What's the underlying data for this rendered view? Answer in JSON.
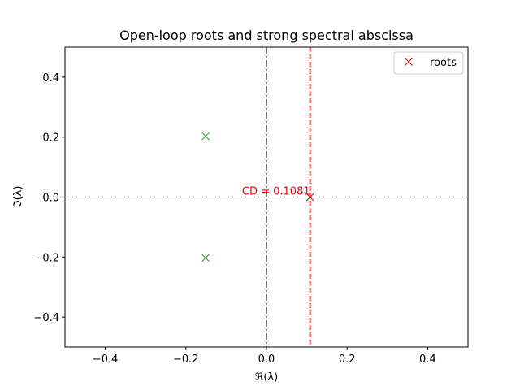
{
  "chart_data": {
    "type": "scatter",
    "title": "Open-loop roots and strong spectral abscissa",
    "xlabel": "ℜ(λ)",
    "ylabel": "ℑ(λ)",
    "xlim": [
      -0.5,
      0.5
    ],
    "ylim": [
      -0.5,
      0.5
    ],
    "xticks": [
      "−0.4",
      "−0.2",
      "0.0",
      "0.2",
      "0.4"
    ],
    "xtick_values": [
      -0.4,
      -0.2,
      0.0,
      0.2,
      0.4
    ],
    "yticks": [
      "−0.4",
      "−0.2",
      "0.0",
      "0.2",
      "0.4"
    ],
    "ytick_values": [
      -0.4,
      -0.2,
      0.0,
      0.2,
      0.4
    ],
    "grid": false,
    "legend_position": "upper right",
    "series": [
      {
        "name": "roots",
        "marker": "x",
        "color": "#2ca02c",
        "points": [
          [
            -0.151,
            0.203
          ],
          [
            -0.151,
            -0.203
          ]
        ]
      }
    ],
    "spectral_abscissa": {
      "value": 0.1081,
      "label": "CD = 0.1081",
      "color": "#ff0000",
      "marker_point": [
        0.1081,
        0.0
      ]
    },
    "reference_lines": [
      {
        "orientation": "vertical",
        "x": 0.0,
        "style": "dashdot",
        "color": "#000000"
      },
      {
        "orientation": "horizontal",
        "y": 0.0,
        "style": "dashdot",
        "color": "#000000"
      },
      {
        "orientation": "vertical",
        "x": 0.1081,
        "style": "dashed",
        "color": "#ff0000"
      }
    ]
  },
  "legend": {
    "label": "roots",
    "marker_color": "#ff0000"
  }
}
